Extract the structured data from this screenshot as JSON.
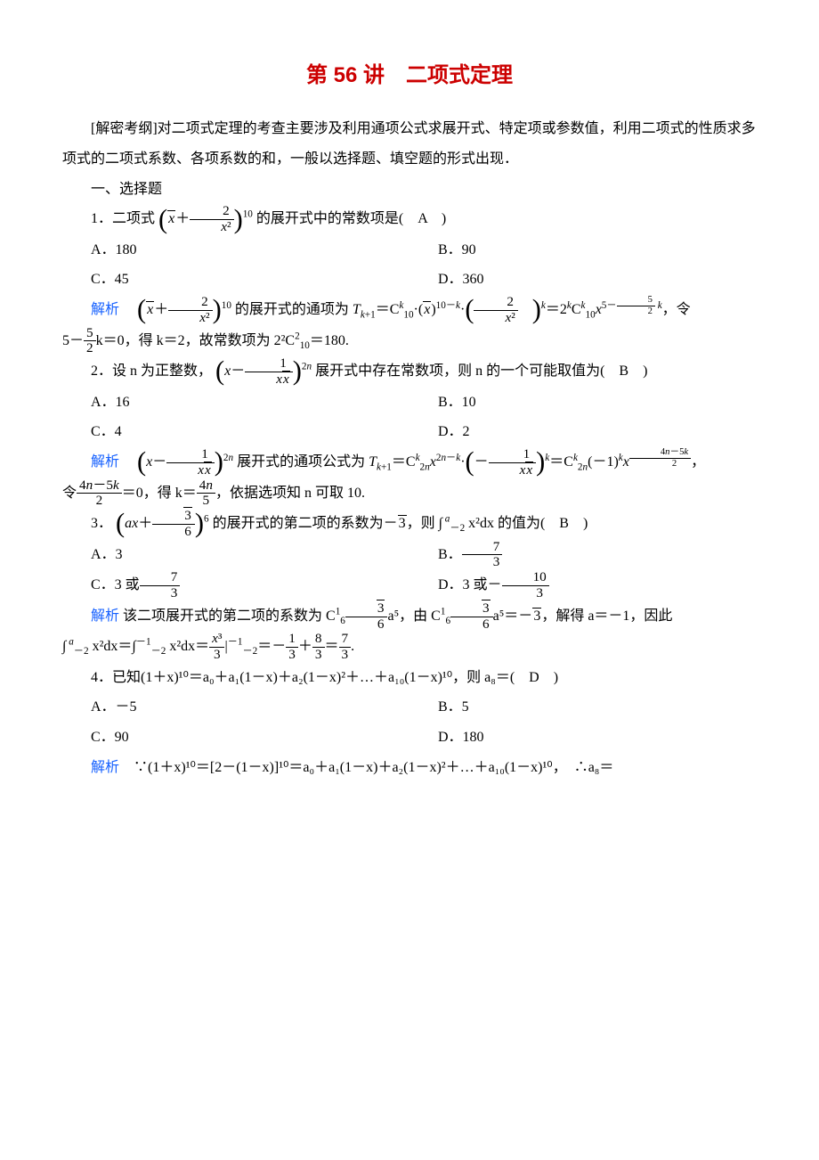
{
  "title": "第 56 讲　二项式定理",
  "intro": "[解密考纲]对二项式定理的考查主要涉及利用通项公式求展开式、特定项或参数值，利用二项式的性质求多项式的二项式系数、各项系数的和，一般以选择题、填空题的形式出现．",
  "section1": "一、选择题",
  "q1": {
    "stem_pre": "1．二项式 ",
    "stem_post": " 的展开式中的常数项是(　A　)",
    "A": "A．180",
    "B": "B．90",
    "C": "C．45",
    "D": "D．360",
    "sol_label": "解析",
    "sol_post": "，令"
  },
  "q1_sol2_pre": "5－",
  "q1_sol2_mid": "k＝0，得 k＝2，故常数项为 2²C",
  "q1_sol2_post": "＝180.",
  "q2": {
    "stem_pre": "2．设 n 为正整数，",
    "stem_post": " 展开式中存在常数项，则 n 的一个可能取值为(　B　)",
    "A": "A．16",
    "B": "B．10",
    "C": "C．4",
    "D": "D．2",
    "sol_label": "解析"
  },
  "q2_sol2_pre": "令",
  "q2_sol2_mid": "＝0，得 k＝",
  "q2_sol2_post": "，依据选项知 n 可取 10.",
  "q3": {
    "stem_pre": "3．",
    "stem_mid": " 的展开式的第二项的系数为－",
    "stem_post": "，则 ∫",
    "stem_end": " x²dx 的值为(　B　)",
    "A": "A．3",
    "B_pre": "B．",
    "C_pre": "C．3 或",
    "D_pre": "D．3 或－",
    "sol_label": "解析",
    "sol_1": "该二项展开式的第二项的系数为 C",
    "sol_2": "a⁵，由 C",
    "sol_3": "a⁵＝－",
    "sol_4": "，解得 a＝－1，因此"
  },
  "q3_line2_a": "∫",
  "q3_line2_b": " x²dx＝∫",
  "q3_line2_c": " x²dx＝",
  "q3_line2_d": "|",
  "q3_line2_e": "＝－",
  "q3_line2_f": "＋",
  "q3_line2_g": "＝",
  "q3_line2_h": ".",
  "q4": {
    "stem": "4．已知(1＋x)¹⁰＝a₀＋a₁(1－x)＋a₂(1－x)²＋…＋a₁₀(1－x)¹⁰，则 a₈＝(　D　)",
    "A": "A．－5",
    "B": "B．5",
    "C": "C．90",
    "D": "D．180",
    "sol_label": "解析",
    "sol": "∵(1＋x)¹⁰＝[2－(1－x)]¹⁰＝a₀＋a₁(1－x)＋a₂(1－x)²＋…＋a₁₀(1－x)¹⁰，　∴a₈＝"
  },
  "colors": {
    "title": "#cc0000",
    "link": "#1560ff",
    "text": "#000000",
    "bg": "#ffffff"
  }
}
